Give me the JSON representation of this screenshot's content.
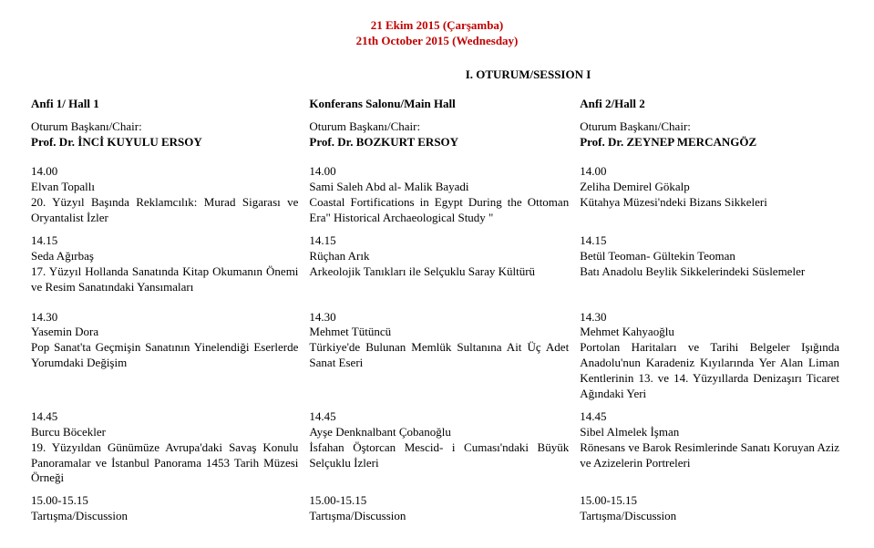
{
  "date": {
    "line1": "21 Ekim 2015 (Çarşamba)",
    "line2": "21th October 2015 (Wednesday)"
  },
  "session_title": "I.       OTURUM/SESSION I",
  "columns": {
    "c1": {
      "hall": "Anfi 1/ Hall 1",
      "chair_label": "Oturum Başkanı/Chair:",
      "chair_name": "Prof. Dr. İNCİ KUYULU ERSOY"
    },
    "c2": {
      "hall": "Konferans Salonu/Main Hall",
      "chair_label": "Oturum Başkanı/Chair:",
      "chair_name": "Prof. Dr. BOZKURT ERSOY"
    },
    "c3": {
      "hall": "Anfi 2/Hall 2",
      "chair_label": "Oturum Başkanı/Chair:",
      "chair_name": "Prof. Dr. ZEYNEP MERCANGÖZ"
    }
  },
  "r1": {
    "c1": {
      "time": "14.00",
      "speaker": "Elvan Topallı",
      "title": "20. Yüzyıl Başında Reklamcılık: Murad Sigarası ve Oryantalist İzler"
    },
    "c2": {
      "time": "14.00",
      "speaker": "Sami Saleh Abd al- Malik Bayadi",
      "title": "Coastal Fortifications in Egypt During the Ottoman Era\" Historical Archaeological Study \""
    },
    "c3": {
      "time": "14.00",
      "speaker": "Zeliha Demirel Gökalp",
      "title": "Kütahya Müzesi'ndeki Bizans Sikkeleri"
    }
  },
  "r2": {
    "c1": {
      "time": "14.15",
      "speaker": "Seda Ağırbaş",
      "title": "17. Yüzyıl Hollanda Sanatında Kitap Okumanın Önemi ve Resim Sanatındaki Yansımaları"
    },
    "c2": {
      "time": "14.15",
      "speaker": "Rüçhan Arık",
      "title": "Arkeolojik Tanıkları ile Selçuklu Saray Kültürü"
    },
    "c3": {
      "time": "14.15",
      "speaker": "Betül Teoman- Gültekin Teoman",
      "title": "Batı Anadolu Beylik Sikkelerindeki Süslemeler"
    }
  },
  "r3": {
    "c1": {
      "time": "14.30",
      "speaker": "Yasemin Dora",
      "title": "Pop Sanat'ta Geçmişin Sanatının Yinelendiği Eserlerde Yorumdaki Değişim"
    },
    "c2": {
      "time": "14.30",
      "speaker": "Mehmet Tütüncü",
      "title": "Türkiye'de Bulunan Memlük Sultanına Ait Üç Adet Sanat Eseri"
    },
    "c3": {
      "time": "14.30",
      "speaker": "Mehmet Kahyaoğlu",
      "title": "Portolan Haritaları ve Tarihi Belgeler Işığında Anadolu'nun Karadeniz Kıyılarında Yer Alan Liman Kentlerinin 13. ve 14. Yüzyıllarda Denizaşırı Ticaret Ağındaki Yeri"
    }
  },
  "r4": {
    "c1": {
      "time": "14.45",
      "speaker": "Burcu Böcekler",
      "title": "19. Yüzyıldan Günümüze Avrupa'daki Savaş Konulu Panoramalar ve İstanbul Panorama 1453 Tarih Müzesi Örneği"
    },
    "c2": {
      "time": "14.45",
      "speaker": "Ayşe Denknalbant Çobanoğlu",
      "title": "İsfahan Öştorcan Mescid- i Cuması'ndaki Büyük Selçuklu İzleri"
    },
    "c3": {
      "time": "14.45",
      "speaker": "Sibel Almelek İşman",
      "title": "Rönesans ve Barok Resimlerinde Sanatı Koruyan Aziz ve Azizelerin Portreleri"
    }
  },
  "r5": {
    "c1": {
      "time": "15.00-15.15",
      "label": "Tartışma/Discussion"
    },
    "c2": {
      "time": "15.00-15.15",
      "label": "Tartışma/Discussion"
    },
    "c3": {
      "time": "15.00-15.15",
      "label": "Tartışma/Discussion"
    }
  }
}
